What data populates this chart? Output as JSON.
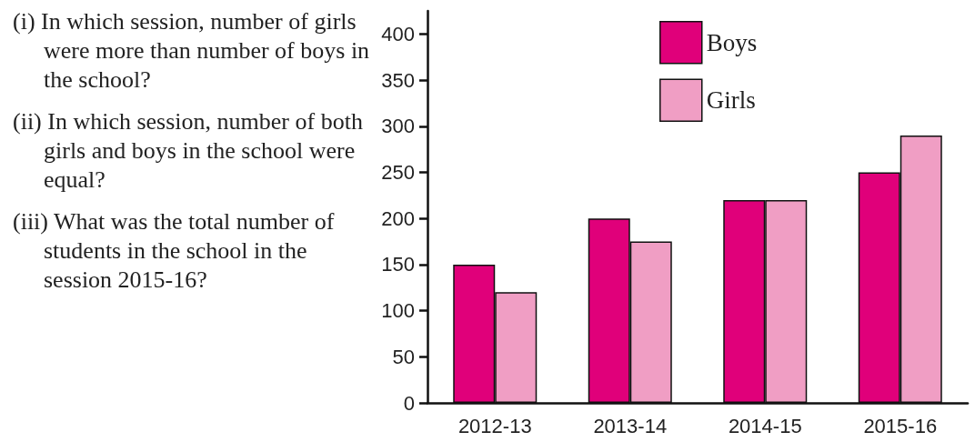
{
  "chart_data": {
    "type": "bar",
    "annotations": [
      "(i) In which session, number of girls were more than number of boys in the school?",
      "(ii) In which session, number of both girls and boys in the school were equal?",
      "(iii) What was the total number of students in the school in the session 2015-16?"
    ],
    "categories": [
      "2012-13",
      "2013-14",
      "2014-15",
      "2015-16"
    ],
    "series": [
      {
        "name": "Boys",
        "color": "#e0007a",
        "values": [
          150,
          200,
          220,
          250
        ]
      },
      {
        "name": "Girls",
        "color": "#f09ec4",
        "values": [
          120,
          175,
          220,
          290
        ]
      }
    ],
    "ylim": [
      0,
      425
    ],
    "yticks": [
      0,
      50,
      100,
      150,
      200,
      250,
      300,
      350,
      400
    ],
    "grid": false,
    "legend": "top"
  }
}
